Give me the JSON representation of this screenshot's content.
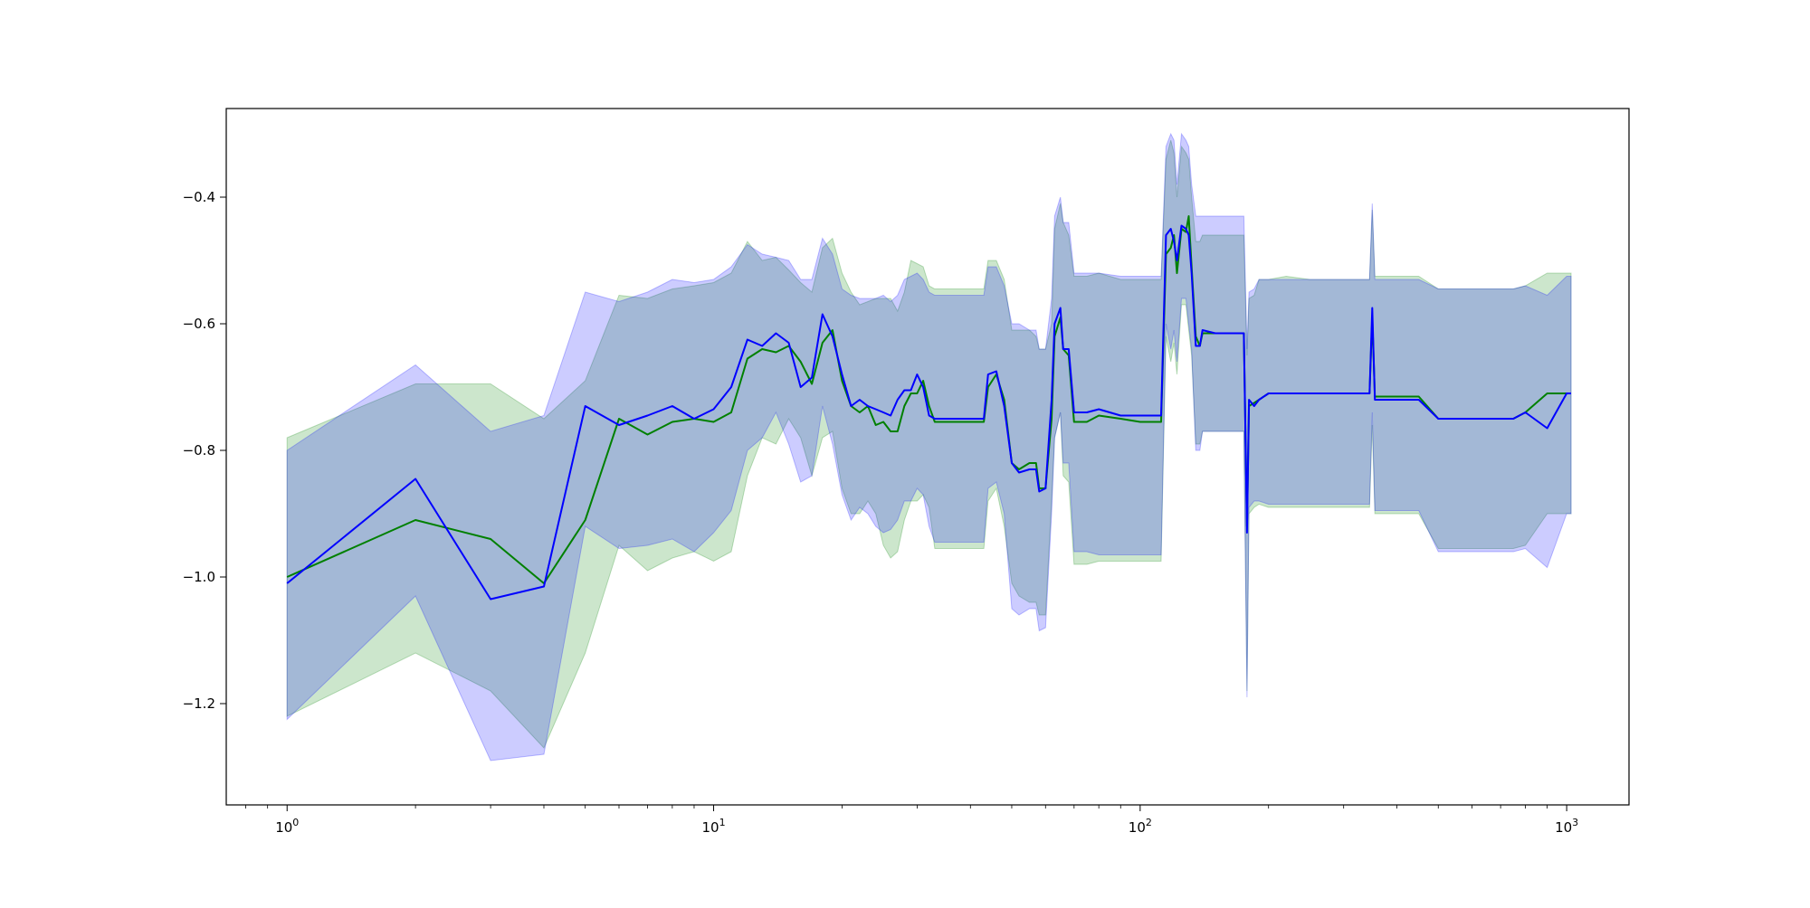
{
  "chart_data": {
    "type": "line",
    "title": "",
    "xlabel": "",
    "ylabel": "",
    "xscale": "log",
    "xlim": [
      0.72,
      1400
    ],
    "ylim": [
      -1.36,
      -0.26
    ],
    "grid": false,
    "x_ticks": [
      {
        "value": 1,
        "label_base": "10",
        "label_exp": "0"
      },
      {
        "value": 10,
        "label_base": "10",
        "label_exp": "1"
      },
      {
        "value": 100,
        "label_base": "10",
        "label_exp": "2"
      },
      {
        "value": 1000,
        "label_base": "10",
        "label_exp": "3"
      }
    ],
    "y_ticks": [
      {
        "value": -1.2,
        "label": "−1.2"
      },
      {
        "value": -1.0,
        "label": "−1.0"
      },
      {
        "value": -0.8,
        "label": "−0.8"
      },
      {
        "value": -0.6,
        "label": "−0.6"
      },
      {
        "value": -0.4,
        "label": "−0.4"
      }
    ],
    "colors": {
      "series_a_line": "#008000",
      "series_a_band": "#008000",
      "series_b_line": "#0000ff",
      "series_b_band": "#0000ff"
    },
    "series": [
      {
        "color": "#008000",
        "x": [
          1,
          2,
          3,
          4,
          5,
          6,
          7,
          8,
          9,
          10,
          11,
          12,
          13,
          14,
          15,
          16,
          17,
          18,
          19,
          20,
          21,
          22,
          23,
          24,
          25,
          26,
          27,
          28,
          29,
          30,
          31,
          32,
          33,
          40,
          43,
          44,
          46,
          48,
          50,
          52,
          55,
          57,
          58,
          60,
          62,
          63,
          65,
          66,
          68,
          70,
          75,
          80,
          90,
          100,
          110,
          112,
          115,
          118,
          120,
          122,
          125,
          128,
          130,
          132,
          135,
          138,
          140,
          150,
          160,
          170,
          175,
          178,
          180,
          185,
          190,
          200,
          220,
          250,
          300,
          340,
          345,
          350,
          355,
          360,
          400,
          450,
          500,
          600,
          700,
          750,
          800,
          900,
          1000,
          1024
        ],
        "values": [
          -1.0,
          -0.91,
          -0.94,
          -1.01,
          -0.91,
          -0.75,
          -0.775,
          -0.755,
          -0.75,
          -0.755,
          -0.74,
          -0.655,
          -0.64,
          -0.645,
          -0.635,
          -0.66,
          -0.695,
          -0.63,
          -0.61,
          -0.69,
          -0.73,
          -0.74,
          -0.73,
          -0.76,
          -0.755,
          -0.77,
          -0.77,
          -0.73,
          -0.71,
          -0.71,
          -0.69,
          -0.73,
          -0.755,
          -0.755,
          -0.755,
          -0.7,
          -0.68,
          -0.72,
          -0.82,
          -0.83,
          -0.82,
          -0.82,
          -0.86,
          -0.86,
          -0.75,
          -0.62,
          -0.59,
          -0.64,
          -0.65,
          -0.755,
          -0.755,
          -0.745,
          -0.75,
          -0.755,
          -0.755,
          -0.755,
          -0.49,
          -0.48,
          -0.46,
          -0.52,
          -0.45,
          -0.455,
          -0.43,
          -0.51,
          -0.62,
          -0.635,
          -0.615,
          -0.615,
          -0.615,
          -0.615,
          -0.615,
          -0.92,
          -0.73,
          -0.725,
          -0.72,
          -0.71,
          -0.71,
          -0.71,
          -0.71,
          -0.71,
          -0.71,
          -0.59,
          -0.715,
          -0.715,
          -0.715,
          -0.715,
          -0.75,
          -0.75,
          -0.75,
          -0.75,
          -0.74,
          -0.71,
          -0.71,
          -0.71
        ],
        "lower": [
          -1.22,
          -1.12,
          -1.18,
          -1.27,
          -1.12,
          -0.95,
          -0.99,
          -0.97,
          -0.96,
          -0.975,
          -0.96,
          -0.84,
          -0.78,
          -0.79,
          -0.75,
          -0.78,
          -0.84,
          -0.78,
          -0.77,
          -0.86,
          -0.9,
          -0.9,
          -0.88,
          -0.9,
          -0.95,
          -0.97,
          -0.96,
          -0.91,
          -0.88,
          -0.88,
          -0.87,
          -0.89,
          -0.955,
          -0.955,
          -0.955,
          -0.88,
          -0.86,
          -0.92,
          -1.01,
          -1.03,
          -1.04,
          -1.04,
          -1.06,
          -1.06,
          -0.88,
          -0.78,
          -0.74,
          -0.84,
          -0.85,
          -0.98,
          -0.98,
          -0.975,
          -0.975,
          -0.975,
          -0.975,
          -0.975,
          -0.62,
          -0.66,
          -0.63,
          -0.68,
          -0.57,
          -0.57,
          -0.61,
          -0.65,
          -0.79,
          -0.79,
          -0.77,
          -0.77,
          -0.77,
          -0.77,
          -0.77,
          -1.18,
          -0.9,
          -0.89,
          -0.885,
          -0.89,
          -0.89,
          -0.89,
          -0.89,
          -0.89,
          -0.89,
          -0.76,
          -0.9,
          -0.9,
          -0.9,
          -0.9,
          -0.955,
          -0.955,
          -0.955,
          -0.955,
          -0.95,
          -0.9,
          -0.9,
          -0.9
        ],
        "upper": [
          -0.78,
          -0.695,
          -0.695,
          -0.75,
          -0.69,
          -0.555,
          -0.56,
          -0.545,
          -0.54,
          -0.535,
          -0.52,
          -0.47,
          -0.5,
          -0.495,
          -0.515,
          -0.535,
          -0.55,
          -0.48,
          -0.465,
          -0.52,
          -0.55,
          -0.57,
          -0.565,
          -0.56,
          -0.56,
          -0.56,
          -0.58,
          -0.55,
          -0.5,
          -0.505,
          -0.51,
          -0.54,
          -0.545,
          -0.545,
          -0.545,
          -0.5,
          -0.5,
          -0.53,
          -0.61,
          -0.61,
          -0.61,
          -0.62,
          -0.64,
          -0.64,
          -0.6,
          -0.45,
          -0.41,
          -0.44,
          -0.46,
          -0.525,
          -0.525,
          -0.52,
          -0.53,
          -0.53,
          -0.53,
          -0.53,
          -0.34,
          -0.31,
          -0.33,
          -0.4,
          -0.32,
          -0.33,
          -0.34,
          -0.4,
          -0.47,
          -0.47,
          -0.46,
          -0.46,
          -0.46,
          -0.46,
          -0.46,
          -0.65,
          -0.56,
          -0.555,
          -0.53,
          -0.53,
          -0.525,
          -0.53,
          -0.53,
          -0.53,
          -0.53,
          -0.42,
          -0.525,
          -0.525,
          -0.525,
          -0.525,
          -0.545,
          -0.545,
          -0.545,
          -0.545,
          -0.54,
          -0.52,
          -0.52,
          -0.52
        ]
      },
      {
        "color": "#0000ff",
        "x": [
          1,
          2,
          3,
          4,
          5,
          6,
          7,
          8,
          9,
          10,
          11,
          12,
          13,
          14,
          15,
          16,
          17,
          18,
          19,
          20,
          21,
          22,
          23,
          24,
          25,
          26,
          27,
          28,
          29,
          30,
          31,
          32,
          33,
          40,
          43,
          44,
          46,
          48,
          50,
          52,
          55,
          57,
          58,
          60,
          62,
          63,
          65,
          66,
          68,
          70,
          75,
          80,
          90,
          100,
          110,
          112,
          115,
          118,
          120,
          122,
          125,
          128,
          130,
          132,
          135,
          138,
          140,
          150,
          160,
          170,
          175,
          178,
          180,
          185,
          190,
          200,
          220,
          250,
          300,
          340,
          345,
          350,
          355,
          360,
          400,
          450,
          500,
          600,
          700,
          750,
          800,
          900,
          1000,
          1024
        ],
        "values": [
          -1.01,
          -0.845,
          -1.035,
          -1.015,
          -0.73,
          -0.76,
          -0.745,
          -0.73,
          -0.75,
          -0.735,
          -0.7,
          -0.625,
          -0.635,
          -0.615,
          -0.63,
          -0.7,
          -0.685,
          -0.585,
          -0.62,
          -0.68,
          -0.73,
          -0.72,
          -0.73,
          -0.735,
          -0.74,
          -0.745,
          -0.72,
          -0.705,
          -0.705,
          -0.68,
          -0.7,
          -0.745,
          -0.75,
          -0.75,
          -0.75,
          -0.68,
          -0.675,
          -0.73,
          -0.82,
          -0.835,
          -0.83,
          -0.83,
          -0.865,
          -0.86,
          -0.72,
          -0.6,
          -0.575,
          -0.64,
          -0.64,
          -0.74,
          -0.74,
          -0.735,
          -0.745,
          -0.745,
          -0.745,
          -0.745,
          -0.46,
          -0.45,
          -0.47,
          -0.5,
          -0.445,
          -0.45,
          -0.46,
          -0.52,
          -0.635,
          -0.635,
          -0.61,
          -0.615,
          -0.615,
          -0.615,
          -0.615,
          -0.93,
          -0.72,
          -0.73,
          -0.72,
          -0.71,
          -0.71,
          -0.71,
          -0.71,
          -0.71,
          -0.71,
          -0.575,
          -0.72,
          -0.72,
          -0.72,
          -0.72,
          -0.75,
          -0.75,
          -0.75,
          -0.75,
          -0.74,
          -0.765,
          -0.71,
          -0.71
        ],
        "lower": [
          -1.225,
          -1.03,
          -1.29,
          -1.28,
          -0.92,
          -0.955,
          -0.95,
          -0.94,
          -0.96,
          -0.93,
          -0.895,
          -0.8,
          -0.78,
          -0.74,
          -0.79,
          -0.85,
          -0.84,
          -0.73,
          -0.79,
          -0.87,
          -0.91,
          -0.89,
          -0.9,
          -0.92,
          -0.93,
          -0.925,
          -0.91,
          -0.88,
          -0.88,
          -0.86,
          -0.87,
          -0.92,
          -0.945,
          -0.945,
          -0.945,
          -0.86,
          -0.85,
          -0.9,
          -1.05,
          -1.06,
          -1.05,
          -1.05,
          -1.085,
          -1.08,
          -0.9,
          -0.78,
          -0.74,
          -0.82,
          -0.82,
          -0.96,
          -0.96,
          -0.965,
          -0.965,
          -0.965,
          -0.965,
          -0.965,
          -0.6,
          -0.64,
          -0.61,
          -0.66,
          -0.56,
          -0.56,
          -0.6,
          -0.64,
          -0.8,
          -0.8,
          -0.77,
          -0.77,
          -0.77,
          -0.77,
          -0.77,
          -1.19,
          -0.89,
          -0.88,
          -0.88,
          -0.885,
          -0.885,
          -0.885,
          -0.885,
          -0.885,
          -0.885,
          -0.74,
          -0.895,
          -0.895,
          -0.895,
          -0.895,
          -0.96,
          -0.96,
          -0.96,
          -0.96,
          -0.955,
          -0.985,
          -0.9,
          -0.9
        ],
        "upper": [
          -0.8,
          -0.665,
          -0.77,
          -0.745,
          -0.55,
          -0.565,
          -0.55,
          -0.53,
          -0.535,
          -0.53,
          -0.51,
          -0.475,
          -0.49,
          -0.495,
          -0.5,
          -0.53,
          -0.53,
          -0.465,
          -0.49,
          -0.545,
          -0.555,
          -0.56,
          -0.56,
          -0.56,
          -0.555,
          -0.565,
          -0.555,
          -0.53,
          -0.525,
          -0.52,
          -0.53,
          -0.55,
          -0.555,
          -0.555,
          -0.555,
          -0.51,
          -0.51,
          -0.54,
          -0.6,
          -0.6,
          -0.61,
          -0.61,
          -0.64,
          -0.64,
          -0.56,
          -0.43,
          -0.4,
          -0.44,
          -0.44,
          -0.52,
          -0.52,
          -0.52,
          -0.525,
          -0.525,
          -0.525,
          -0.525,
          -0.32,
          -0.3,
          -0.31,
          -0.38,
          -0.3,
          -0.31,
          -0.32,
          -0.38,
          -0.43,
          -0.43,
          -0.43,
          -0.43,
          -0.43,
          -0.43,
          -0.43,
          -0.64,
          -0.55,
          -0.545,
          -0.53,
          -0.53,
          -0.53,
          -0.53,
          -0.53,
          -0.53,
          -0.53,
          -0.41,
          -0.53,
          -0.53,
          -0.53,
          -0.53,
          -0.545,
          -0.545,
          -0.545,
          -0.545,
          -0.54,
          -0.555,
          -0.525,
          -0.525
        ]
      }
    ]
  }
}
